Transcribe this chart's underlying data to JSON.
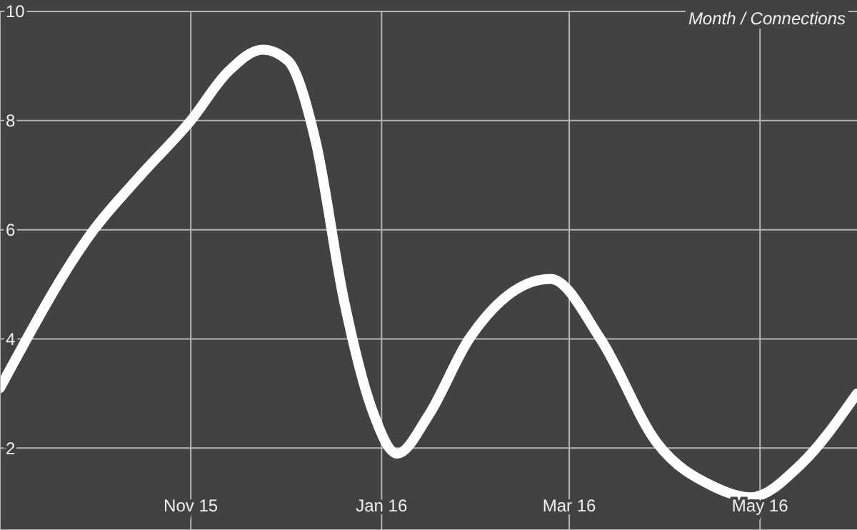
{
  "chart_data": {
    "type": "line",
    "title": "Month / Connections",
    "x": [
      "2015-09-01",
      "2015-10-01",
      "2015-10-16",
      "2015-11-01",
      "2015-11-13",
      "2015-11-24",
      "2015-12-02",
      "2015-12-11",
      "2015-12-20",
      "2015-12-29",
      "2016-01-06",
      "2016-01-16",
      "2016-01-29",
      "2016-02-24",
      "2016-03-11",
      "2016-03-29",
      "2016-04-16",
      "2016-04-28",
      "2016-05-14",
      "2016-06-01"
    ],
    "series": [
      {
        "color": "#ffffff",
        "values": [
          3.1,
          6.0,
          7.0,
          8.0,
          8.9,
          9.3,
          9.1,
          7.6,
          4.7,
          2.7,
          1.9,
          2.6,
          4.0,
          5.1,
          4.0,
          2.1,
          1.3,
          1.1,
          1.7,
          3.0
        ]
      }
    ],
    "xlim": [
      "2015-09-01",
      "2016-06-01"
    ],
    "xticks": [
      {
        "value": "2015-11-01",
        "label": "Nov 15"
      },
      {
        "value": "2016-01-01",
        "label": "Jan 16"
      },
      {
        "value": "2016-03-01",
        "label": "Mar 16"
      },
      {
        "value": "2016-05-01",
        "label": "May 16"
      }
    ],
    "ylim": [
      0.5,
      10
    ],
    "yticks": [
      2,
      4,
      6,
      8,
      10
    ],
    "grid": true,
    "marker": "none",
    "line_style": "solid"
  }
}
